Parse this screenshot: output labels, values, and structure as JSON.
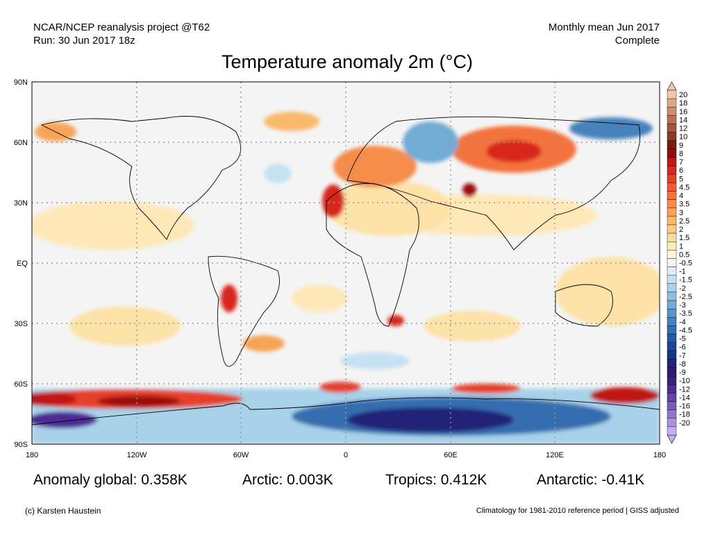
{
  "header": {
    "left_line1": "NCAR/NCEP reanalysis project @T62",
    "left_line2": "Run: 30 Jun 2017 18z",
    "right_line1": "Monthly mean Jun 2017",
    "right_line2": "Complete"
  },
  "title": "Temperature anomaly 2m (°C)",
  "lat_labels": [
    "90N",
    "60N",
    "30N",
    "EQ",
    "30S",
    "60S",
    "90S"
  ],
  "lon_labels": [
    "180",
    "120W",
    "60W",
    "0",
    "60E",
    "120E",
    "180"
  ],
  "colorbar": {
    "labels": [
      "20",
      "18",
      "16",
      "14",
      "12",
      "10",
      "9",
      "8",
      "7",
      "6",
      "5",
      "4.5",
      "4",
      "3.5",
      "3",
      "2.5",
      "2",
      "1.5",
      "1",
      "0.5",
      "-0.5",
      "-1",
      "-1.5",
      "-2",
      "-2.5",
      "-3",
      "-3.5",
      "-4",
      "-4.5",
      "-5",
      "-6",
      "-7",
      "-8",
      "-9",
      "-10",
      "-12",
      "-14",
      "-16",
      "-18",
      "-20"
    ],
    "colors": [
      "#f0c8b0",
      "#e0a888",
      "#d08c6c",
      "#bc7052",
      "#a6543c",
      "#8c3a28",
      "#7a1a10",
      "#9c0a0a",
      "#c01818",
      "#d8281e",
      "#e6402a",
      "#ee5a32",
      "#f4733c",
      "#f68c48",
      "#f8a458",
      "#fab86c",
      "#fccb84",
      "#fddb9e",
      "#feeab8",
      "#fff6d8",
      "#f4f4f4",
      "#deeef8",
      "#c4e2f2",
      "#a8d2ea",
      "#8cc0e0",
      "#72acd4",
      "#5a96c8",
      "#4682bc",
      "#346eb0",
      "#265aa2",
      "#1e4694",
      "#1c3484",
      "#222478",
      "#2e1c74",
      "#3c2080",
      "#4e2c94",
      "#6444a8",
      "#7a5cbc",
      "#9276d0",
      "#aa92e0",
      "#c4b0ee"
    ]
  },
  "stats": {
    "global": "Anomaly global: 0.358K",
    "arctic": "Arctic: 0.003K",
    "tropics": "Tropics: 0.412K",
    "antarctic": "Antarctic: -0.41K"
  },
  "footer": {
    "left": "(c) Karsten Haustein",
    "right": "Climatology for 1981-2010 reference period | GISS adjusted"
  },
  "map_colors": {
    "background": "#f4f4f4",
    "ocean_neutral": "#f4f4f4",
    "coastline": "#000000",
    "grid": "#9a9a9a"
  }
}
